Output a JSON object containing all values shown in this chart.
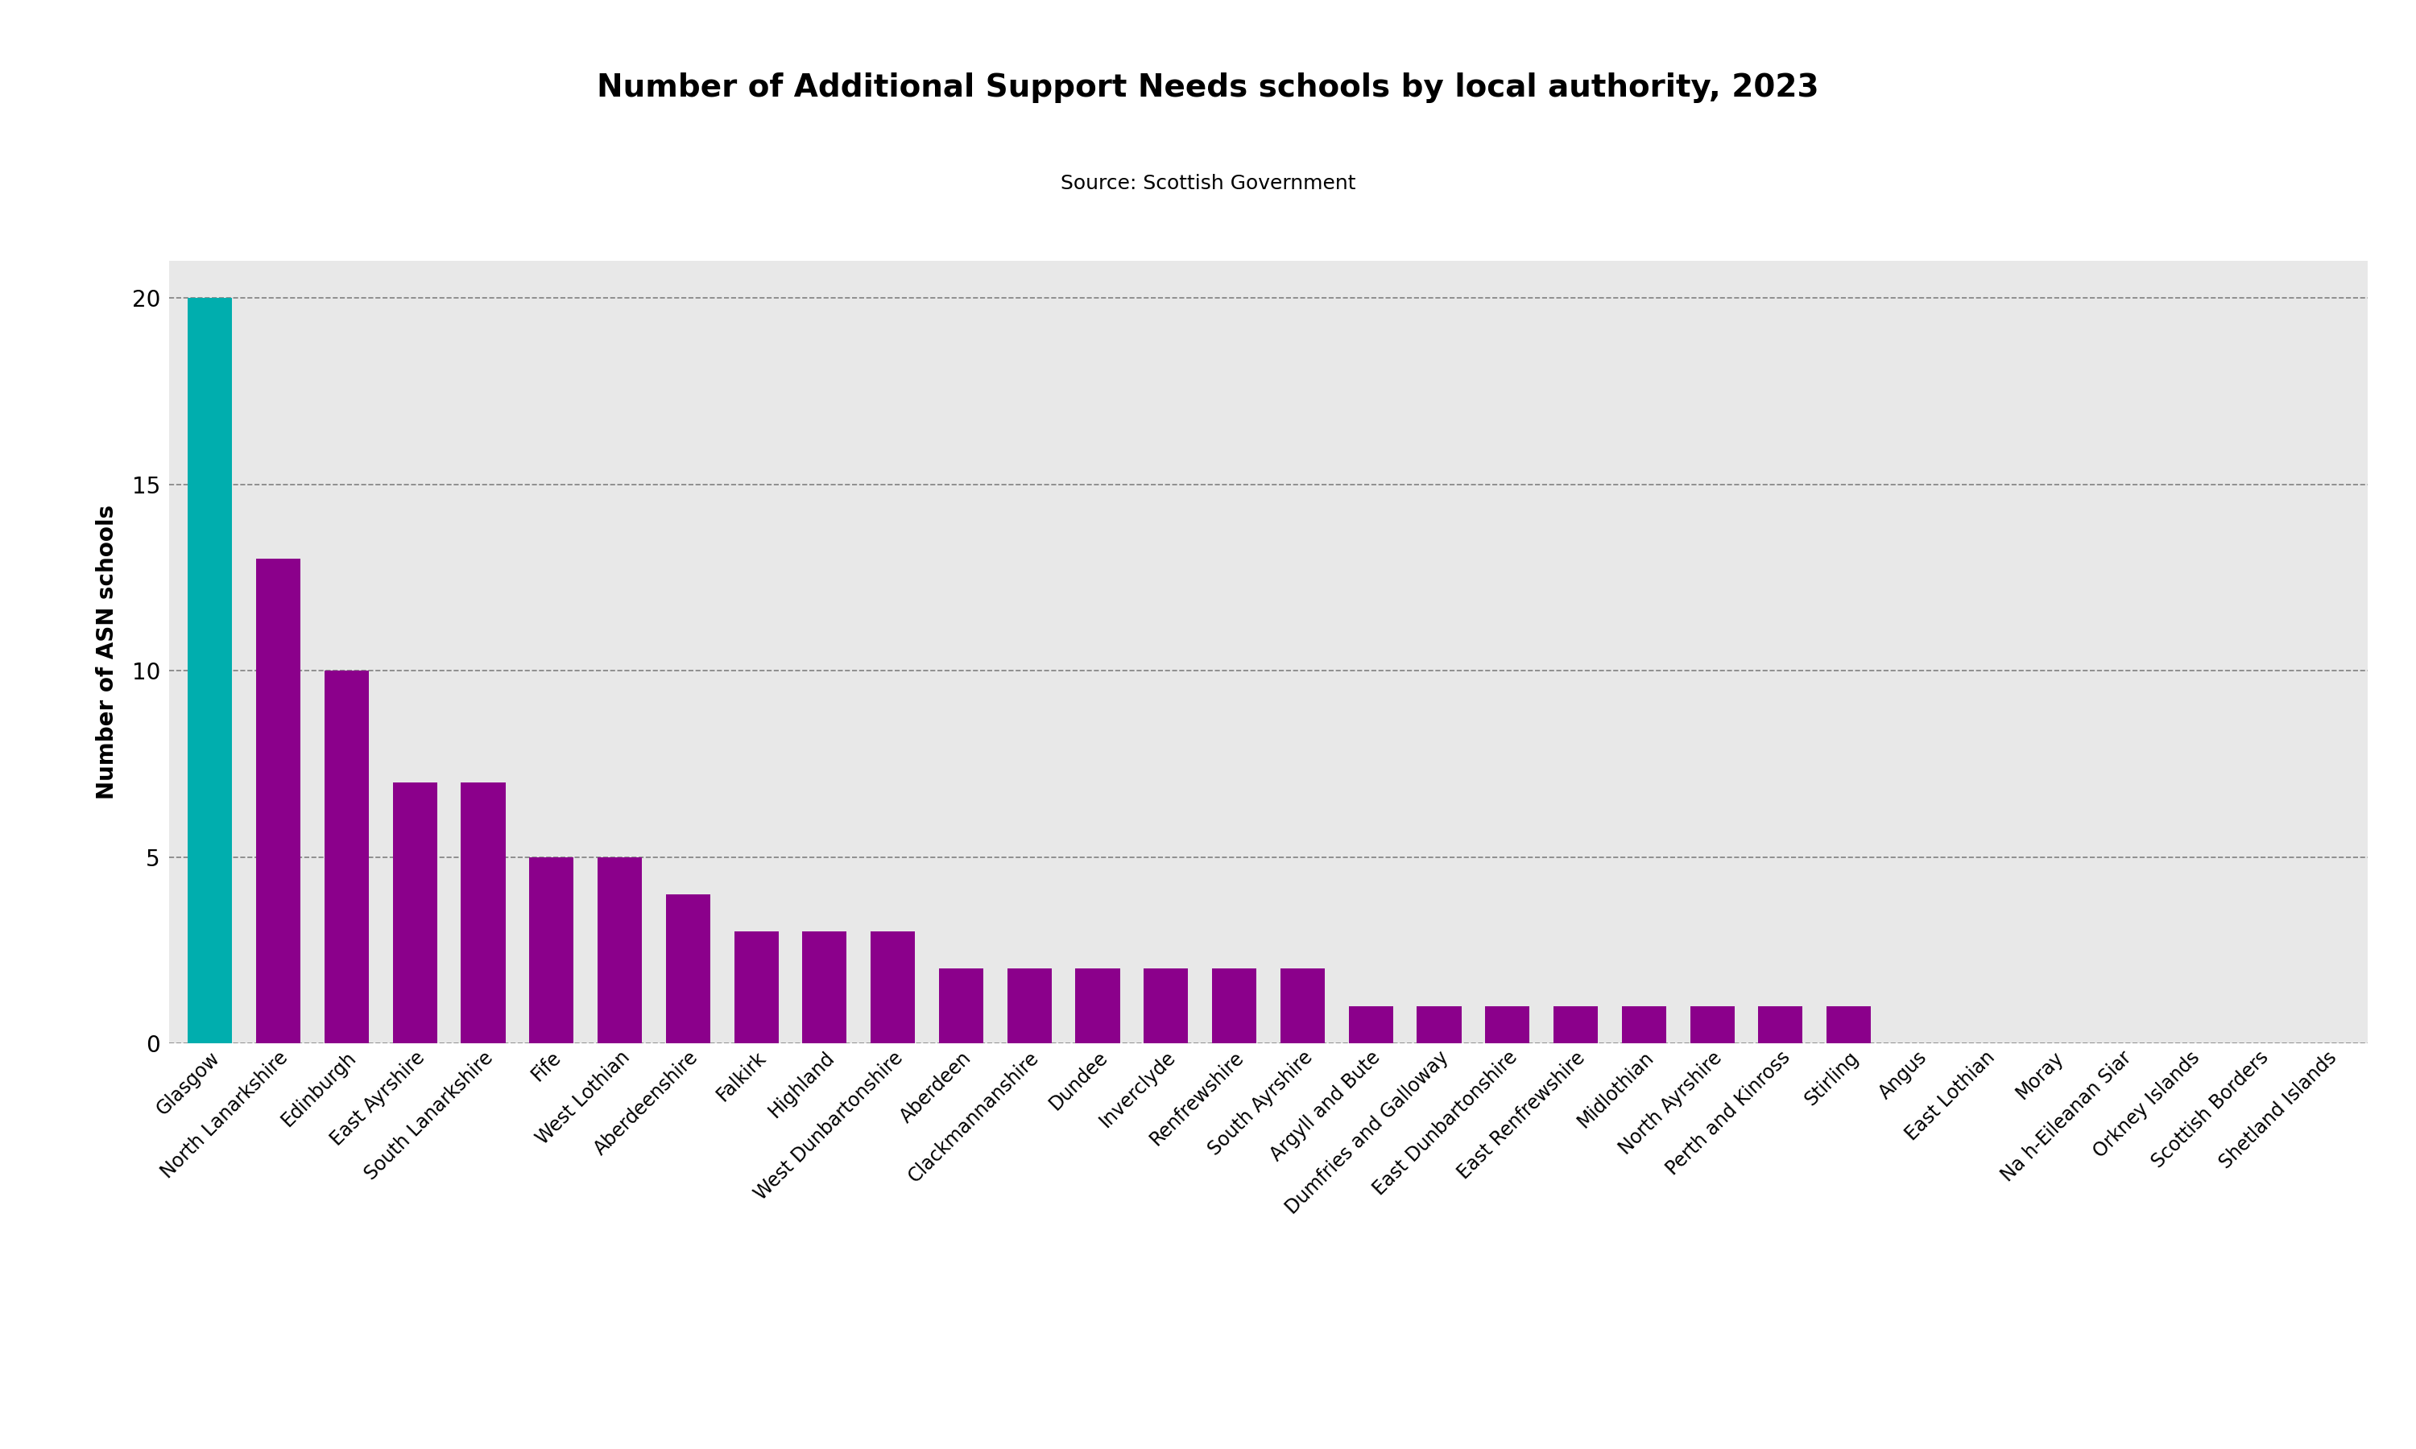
{
  "title": "Number of Additional Support Needs schools by local authority, 2023",
  "subtitle": "Source: Scottish Government",
  "ylabel": "Number of ASN schools",
  "plot_bg_color": "#e8e8e8",
  "fig_bg_color": "#ffffff",
  "categories": [
    "Glasgow",
    "North Lanarkshire",
    "Edinburgh",
    "East Ayrshire",
    "South Lanarkshire",
    "Fife",
    "West Lothian",
    "Aberdeenshire",
    "Falkirk",
    "Highland",
    "West Dunbartonshire",
    "Aberdeen",
    "Clackmannanshire",
    "Dundee",
    "Inverclyde",
    "Renfrewshire",
    "South Ayrshire",
    "Argyll and Bute",
    "Dumfries and Galloway",
    "East Dunbartonshire",
    "East Renfrewshire",
    "Midlothian",
    "North Ayrshire",
    "Perth and Kinross",
    "Stirling",
    "Angus",
    "East Lothian",
    "Moray",
    "Na h-Eileanan Siar",
    "Orkney Islands",
    "Scottish Borders",
    "Shetland Islands"
  ],
  "values": [
    20,
    13,
    10,
    7,
    7,
    5,
    5,
    4,
    3,
    3,
    3,
    2,
    2,
    2,
    2,
    2,
    2,
    1,
    1,
    1,
    1,
    1,
    1,
    1,
    1,
    0,
    0,
    0,
    0,
    0,
    0,
    0
  ],
  "bar_color_default": "#8B008B",
  "bar_color_highlight": "#00AEAE",
  "highlight_index": 0,
  "ylim": [
    0,
    21
  ],
  "yticks": [
    0,
    5,
    10,
    15,
    20
  ],
  "title_fontsize": 28,
  "subtitle_fontsize": 18,
  "ylabel_fontsize": 20,
  "ytick_fontsize": 20,
  "xtick_fontsize": 17,
  "bar_width": 0.65
}
